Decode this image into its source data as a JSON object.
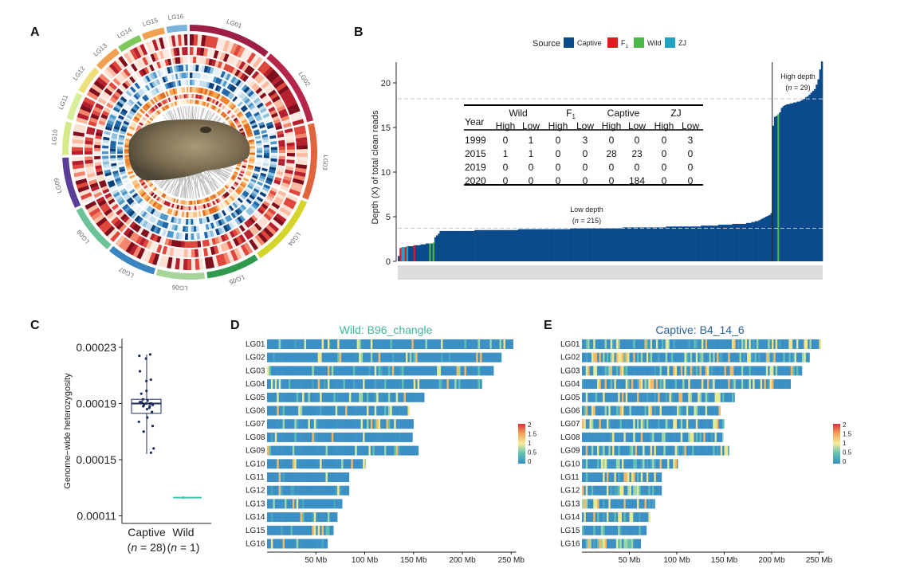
{
  "panel_labels": {
    "A": "A",
    "B": "B",
    "C": "C",
    "D": "D",
    "E": "E"
  },
  "panel_a": {
    "chromosomes": [
      "LG01",
      "LG02",
      "LG03",
      "LG04",
      "LG05",
      "LG06",
      "LG07",
      "LG08",
      "LG09",
      "LG10",
      "LG11",
      "LG12",
      "LG13",
      "LG14",
      "LG15",
      "LG16"
    ],
    "chromosome_colors": [
      "#9e1f45",
      "#b5264a",
      "#e0643c",
      "#d4d42a",
      "#2f9a4e",
      "#a6d49a",
      "#3a84c0",
      "#6cc39a",
      "#5b3e98",
      "#d6ea8a",
      "#d8ee9a",
      "#eddf7a",
      "#f0a050",
      "#7cc85a",
      "#f0a050",
      "#7ab4dc"
    ],
    "center_image": "crocodile-head"
  },
  "chart_data": [
    {
      "panel": "B",
      "type": "bar",
      "ylabel": "Depth (X) of total clean reads",
      "ylim": [
        0,
        22.5
      ],
      "yticks": [
        "0",
        "5",
        "10",
        "15",
        "20"
      ],
      "grid": false,
      "legend": {
        "title": "Source",
        "position": "top",
        "entries": [
          {
            "key": "Captive",
            "label": "Captive",
            "sub": "",
            "color": "#0b4a8b"
          },
          {
            "key": "F1",
            "label": "F",
            "sub": "1",
            "color": "#e31a1c"
          },
          {
            "key": "Wild",
            "label": "Wild",
            "sub": "",
            "color": "#4cb848"
          },
          {
            "key": "ZJ",
            "label": "ZJ",
            "sub": "",
            "color": "#1fa2c4"
          }
        ]
      },
      "threshold_lines": [
        3.7,
        18.2
      ],
      "groups": [
        {
          "label": "Low depth",
          "count_text": [
            "(",
            "n",
            " = 215)"
          ]
        },
        {
          "label": "High depth",
          "count_text": [
            "(",
            "n",
            " = 29)"
          ]
        }
      ],
      "low_depth_runs": [
        [
          0.6,
          1,
          "Captive"
        ],
        [
          1.5,
          1,
          "F1"
        ],
        [
          1.6,
          1,
          "ZJ"
        ],
        [
          1.6,
          1,
          "ZJ"
        ],
        [
          1.6,
          1,
          "F1"
        ],
        [
          1.7,
          1,
          "ZJ"
        ],
        [
          1.7,
          2,
          "Captive"
        ],
        [
          1.7,
          1,
          "Captive"
        ],
        [
          1.8,
          1,
          "F1"
        ],
        [
          1.8,
          3,
          "Captive"
        ],
        [
          1.9,
          3,
          "Captive"
        ],
        [
          2.0,
          2,
          "Captive"
        ],
        [
          2.0,
          1,
          "Wild"
        ],
        [
          2.0,
          1,
          "Captive"
        ],
        [
          2.1,
          1,
          "Wild"
        ],
        [
          2.7,
          1,
          "Captive"
        ],
        [
          2.9,
          1,
          "Captive"
        ],
        [
          3.1,
          1,
          "Captive"
        ],
        [
          3.4,
          20,
          "Captive"
        ],
        [
          3.5,
          25,
          "Captive"
        ],
        [
          3.6,
          30,
          "Captive"
        ],
        [
          3.7,
          30,
          "Captive"
        ],
        [
          3.8,
          25,
          "Captive"
        ],
        [
          3.9,
          20,
          "Captive"
        ],
        [
          4.0,
          10,
          "Captive"
        ],
        [
          4.1,
          8,
          "Captive"
        ],
        [
          4.2,
          8,
          "Captive"
        ],
        [
          4.3,
          3,
          "Captive"
        ],
        [
          4.4,
          2,
          "Captive"
        ],
        [
          4.5,
          2,
          "Captive"
        ],
        [
          4.6,
          1,
          "Captive"
        ],
        [
          4.7,
          1,
          "Captive"
        ],
        [
          4.8,
          1,
          "Captive"
        ],
        [
          4.9,
          1,
          "Captive"
        ],
        [
          5.0,
          1,
          "Captive"
        ],
        [
          5.1,
          1,
          "Captive"
        ],
        [
          5.2,
          1,
          "Captive"
        ],
        [
          5.4,
          1,
          "Captive"
        ]
      ],
      "high_depth_values": [
        15.2,
        16.2,
        16.3,
        16.5,
        16.7,
        17.2,
        17.4,
        17.5,
        17.6,
        17.6,
        17.7,
        17.7,
        17.8,
        17.8,
        17.9,
        17.9,
        18.0,
        18.1,
        18.2,
        18.4,
        18.5,
        18.7,
        18.9,
        19.1,
        19.3,
        19.8,
        20.4,
        21.5,
        22.4
      ],
      "high_depth_sources": [
        "Captive",
        "Captive",
        "Captive",
        "Wild",
        "Captive",
        "Captive",
        "Captive",
        "Captive",
        "Captive",
        "Captive",
        "Captive",
        "Captive",
        "Captive",
        "Captive",
        "Captive",
        "Captive",
        "Captive",
        "Captive",
        "Captive",
        "Captive",
        "Captive",
        "Captive",
        "Captive",
        "Captive",
        "Captive",
        "Captive",
        "Captive",
        "Captive",
        "Captive"
      ],
      "table": {
        "year_header": "Year",
        "groups": [
          {
            "label": "Wild",
            "sub": ""
          },
          {
            "label": "F",
            "sub": "1"
          },
          {
            "label": "Captive",
            "sub": ""
          },
          {
            "label": "ZJ",
            "sub": ""
          }
        ],
        "subheaders": [
          "High",
          "Low",
          "High",
          "Low",
          "High",
          "Low",
          "High",
          "Low"
        ],
        "rows": [
          {
            "year": "1999",
            "cells": [
              "0",
              "1",
              "0",
              "3",
              "0",
              "0",
              "0",
              "3"
            ]
          },
          {
            "year": "2015",
            "cells": [
              "1",
              "1",
              "0",
              "0",
              "28",
              "23",
              "0",
              "0"
            ]
          },
          {
            "year": "2019",
            "cells": [
              "0",
              "0",
              "0",
              "0",
              "0",
              "0",
              "0",
              "0"
            ]
          },
          {
            "year": "2020",
            "cells": [
              "0",
              "0",
              "0",
              "0",
              "0",
              "184",
              "0",
              "0"
            ]
          }
        ]
      }
    },
    {
      "panel": "C",
      "type": "box",
      "ylabel": "Genome−wide heterozygosity",
      "ylim": [
        0.000107,
        0.000234
      ],
      "yticks": [
        "0.00011",
        "0.00015",
        "0.00019",
        "0.00023"
      ],
      "categories": [
        {
          "label": "Captive",
          "count_text": [
            "(",
            "n",
            " = 28)"
          ]
        },
        {
          "label": "Wild",
          "count_text": [
            "(",
            "n",
            " = 1)"
          ]
        }
      ],
      "captive": {
        "color": "#1b2a5a",
        "q1": 0.000183,
        "median": 0.00019,
        "q3": 0.000193,
        "whisker_low": 0.000154,
        "whisker_high": 0.000225,
        "points": [
          0.000225,
          0.000224,
          0.000222,
          0.000213,
          0.000207,
          0.000206,
          0.000199,
          0.000197,
          0.000193,
          0.000192,
          0.000191,
          0.000191,
          0.00019,
          0.00019,
          0.00019,
          0.000189,
          0.000189,
          0.000188,
          0.000188,
          0.000187,
          0.000186,
          0.000184,
          0.00018,
          0.000177,
          0.000174,
          0.00017,
          0.000158,
          0.000155
        ]
      },
      "wild": {
        "color": "#3cc7b0",
        "value": 0.000123
      }
    },
    {
      "panel": "D",
      "type": "heatmap",
      "title": "Wild: B96_changle",
      "title_color": "#3bb89a",
      "rows": [
        "LG01",
        "LG02",
        "LG03",
        "LG04",
        "LG05",
        "LG06",
        "LG07",
        "LG08",
        "LG09",
        "LG10",
        "LG11",
        "LG12",
        "LG13",
        "LG14",
        "LG15",
        "LG16"
      ],
      "lengths_mb": [
        252,
        240,
        232,
        220,
        161,
        146,
        150,
        149,
        155,
        101,
        84,
        84,
        77,
        72,
        68,
        62
      ],
      "xticks": [
        "50 Mb",
        "100 Mb",
        "150 Mb",
        "200 Mb",
        "250 Mb"
      ],
      "colorbar": {
        "ticks": [
          "2",
          "1.5",
          "1",
          "0.5",
          "0"
        ],
        "range": [
          0,
          2
        ]
      }
    },
    {
      "panel": "E",
      "type": "heatmap",
      "title": "Captive: B4_14_6",
      "title_color": "#2b5f9e",
      "rows": [
        "LG01",
        "LG02",
        "LG03",
        "LG04",
        "LG05",
        "LG06",
        "LG07",
        "LG08",
        "LG09",
        "LG10",
        "LG11",
        "LG12",
        "LG13",
        "LG14",
        "LG15",
        "LG16"
      ],
      "lengths_mb": [
        252,
        240,
        232,
        220,
        161,
        146,
        150,
        149,
        155,
        101,
        84,
        84,
        77,
        72,
        68,
        62
      ],
      "xticks": [
        "50 Mb",
        "100 Mb",
        "150 Mb",
        "200 Mb",
        "250 Mb"
      ],
      "colorbar": {
        "ticks": [
          "2",
          "1.5",
          "1",
          "0.5",
          "0"
        ],
        "range": [
          0,
          2
        ]
      }
    }
  ]
}
